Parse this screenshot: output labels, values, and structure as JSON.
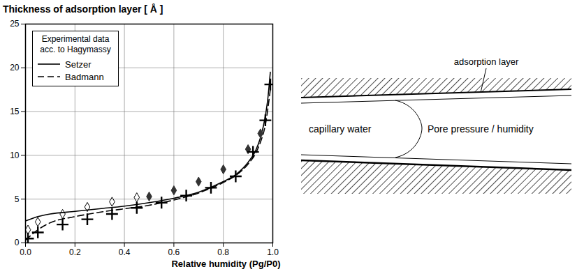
{
  "chart_data": {
    "type": "line",
    "ylabel": "Thickness of adsorption layer [ Å ]",
    "xlabel": "Relative humidity (Pg/P0)",
    "xlim": [
      0,
      1
    ],
    "xticks": [
      {
        "value": 0,
        "label": "0.0"
      },
      {
        "value": 0.2,
        "label": "0.2"
      },
      {
        "value": 0.4,
        "label": "0.4"
      },
      {
        "value": 0.6,
        "label": "0.6"
      },
      {
        "value": 0.8,
        "label": "0.8"
      },
      {
        "value": 1,
        "label": "1.0"
      }
    ],
    "ylim": [
      0,
      25
    ],
    "yticks": [
      0,
      5,
      10,
      15,
      20,
      25
    ],
    "grid": true,
    "legend": "upper left",
    "legend_title": "Experimental data acc. to Hagymassy",
    "series": [
      {
        "name": "Setzer",
        "type": "line",
        "line_style": "solid",
        "color": "#000000",
        "x": [
          0.0,
          0.05,
          0.1,
          0.2,
          0.3,
          0.4,
          0.5,
          0.6,
          0.7,
          0.8,
          0.85,
          0.9,
          0.93,
          0.95,
          0.97,
          0.98,
          0.99
        ],
        "values": [
          2.5,
          3.0,
          3.3,
          3.6,
          3.9,
          4.2,
          4.6,
          5.1,
          5.8,
          7.0,
          7.8,
          9.2,
          10.5,
          12.0,
          14.5,
          16.5,
          19.5
        ]
      },
      {
        "name": "Badmann",
        "type": "line",
        "line_style": "dashed",
        "color": "#000000",
        "x": [
          0.0,
          0.05,
          0.1,
          0.2,
          0.3,
          0.4,
          0.5,
          0.6,
          0.7,
          0.8,
          0.85,
          0.9,
          0.93,
          0.95,
          0.97,
          0.99
        ],
        "values": [
          0.3,
          1.5,
          2.3,
          3.0,
          3.5,
          3.9,
          4.3,
          4.9,
          5.7,
          6.9,
          7.7,
          9.0,
          10.2,
          11.5,
          13.5,
          17.5
        ]
      },
      {
        "type": "scatter",
        "marker": "diamond-open",
        "color": "#000000",
        "x": [
          0.01,
          0.05,
          0.15,
          0.25,
          0.35,
          0.45
        ],
        "values": [
          1.5,
          2.4,
          3.3,
          4.1,
          4.7,
          5.2
        ]
      },
      {
        "type": "scatter",
        "marker": "diamond",
        "color": "#333333",
        "x": [
          0.5,
          0.6,
          0.7,
          0.8,
          0.9,
          0.95
        ],
        "values": [
          5.3,
          6.0,
          7.0,
          8.4,
          10.7,
          12.5
        ]
      },
      {
        "type": "scatter",
        "marker": "plus",
        "color": "#000000",
        "x": [
          0.01,
          0.05,
          0.15,
          0.25,
          0.35,
          0.45,
          0.55,
          0.65,
          0.75,
          0.85,
          0.92,
          0.97,
          0.99
        ],
        "values": [
          0.5,
          1.2,
          2.1,
          2.7,
          3.3,
          4.0,
          4.6,
          5.4,
          6.3,
          7.6,
          10.4,
          14.0,
          18.1
        ]
      }
    ]
  },
  "diagram": {
    "labels": {
      "wall_layer": "adsorption layer",
      "left": "capillary water",
      "right": "Pore pressure / humidity"
    }
  }
}
